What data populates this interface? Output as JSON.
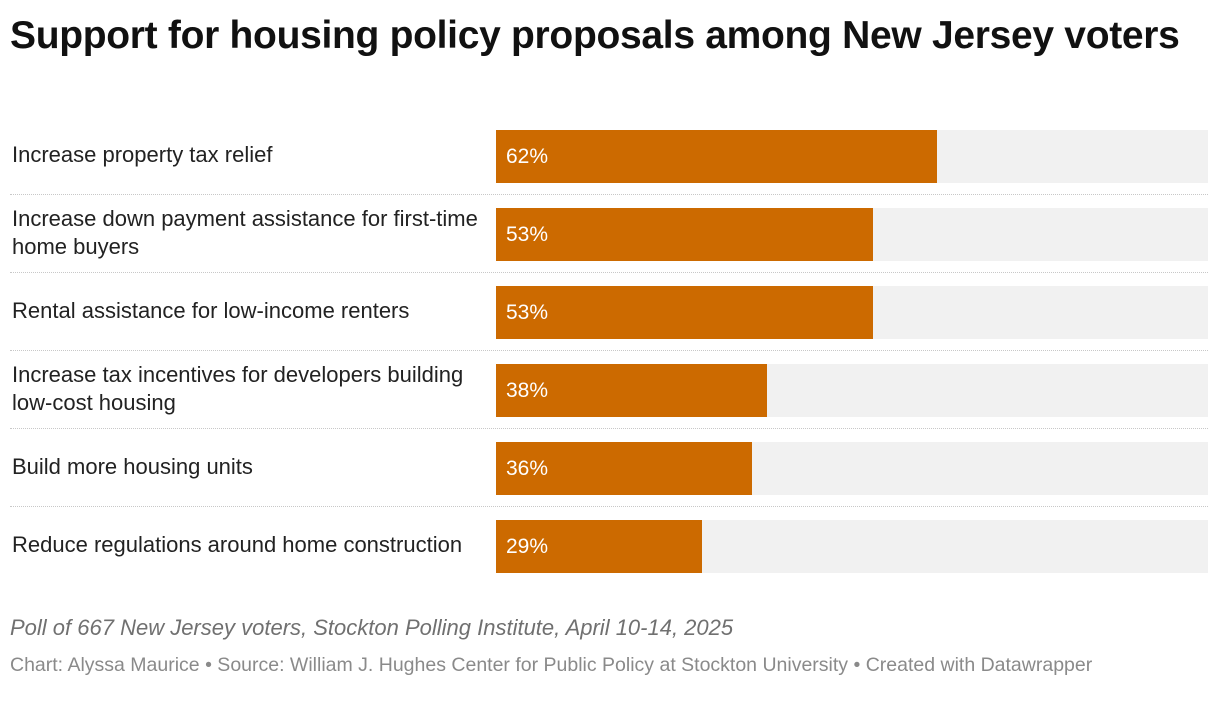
{
  "title": "Support for housing policy proposals among New Jersey voters",
  "chart_data": {
    "type": "bar",
    "orientation": "horizontal",
    "categories": [
      "Increase property tax relief",
      "Increase down payment assistance for first-time home buyers",
      "Rental assistance for low-income renters",
      "Increase tax incentives for developers building low-cost housing",
      "Build more housing units",
      "Reduce regulations around home construction"
    ],
    "values": [
      62,
      53,
      53,
      38,
      36,
      29
    ],
    "value_labels": [
      "62%",
      "53%",
      "53%",
      "38%",
      "36%",
      "29%"
    ],
    "xlim": [
      0,
      100
    ],
    "unit": "%",
    "grid": false,
    "legend": "none",
    "bar_color": "#cc6a00",
    "track_color": "#f1f1f1"
  },
  "note": "Poll of 667 New Jersey voters, Stockton Polling Institute, April 10-14, 2025",
  "credits": "Chart: Alyssa Maurice • Source: William J. Hughes Center for Public Policy at Stockton University • Created with Datawrapper"
}
